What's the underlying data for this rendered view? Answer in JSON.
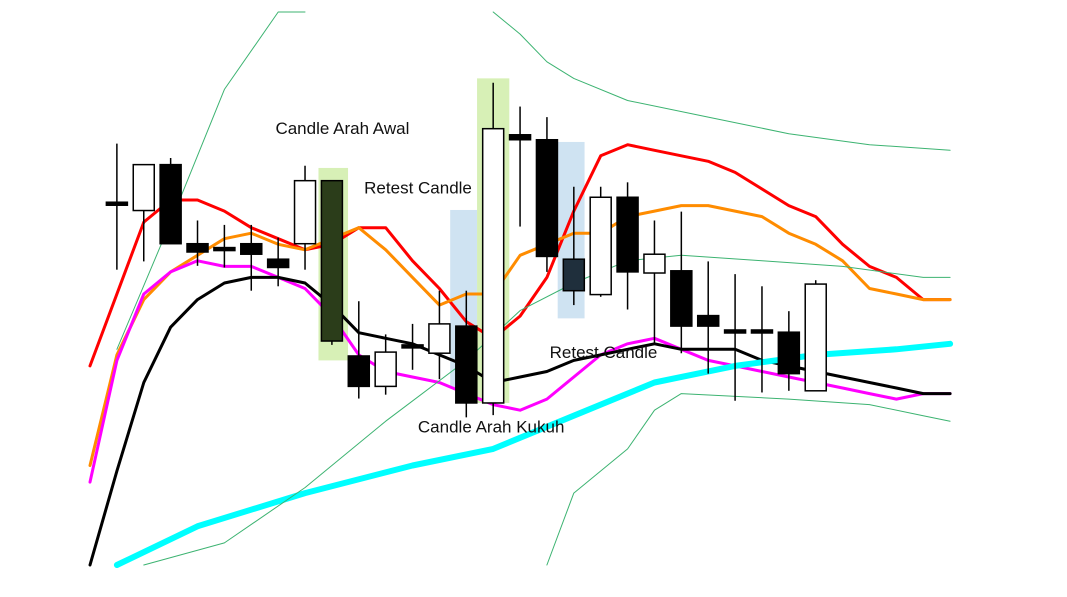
{
  "chart_data": {
    "type": "candlestick",
    "title": "",
    "xlabel": "",
    "ylabel": "",
    "grid": false,
    "legend": "none",
    "x": [
      1,
      2,
      3,
      4,
      5,
      6,
      7,
      8,
      9,
      10,
      11,
      12,
      13,
      14,
      15,
      16,
      17,
      18,
      19,
      20,
      21,
      22,
      23,
      24,
      25,
      26,
      27,
      28,
      29,
      30,
      31,
      32
    ],
    "xlim": [
      0,
      33
    ],
    "ylim": [
      0,
      100
    ],
    "candles": [
      {
        "x": 1,
        "open": 65.6,
        "high": 76.2,
        "low": 53.4,
        "close": 65.6
      },
      {
        "x": 2,
        "open": 64.1,
        "high": 72.4,
        "low": 54.9,
        "close": 72.4
      },
      {
        "x": 3,
        "open": 72.4,
        "high": 73.6,
        "low": 58.1,
        "close": 58.1
      },
      {
        "x": 4,
        "open": 58.1,
        "high": 62.3,
        "low": 54.1,
        "close": 56.6
      },
      {
        "x": 5,
        "open": 57.4,
        "high": 61.5,
        "low": 53.8,
        "close": 57.4
      },
      {
        "x": 6,
        "open": 58.1,
        "high": 61.5,
        "low": 49.6,
        "close": 56.2
      },
      {
        "x": 7,
        "open": 55.3,
        "high": 59.2,
        "low": 50.4,
        "close": 53.8
      },
      {
        "x": 8,
        "open": 58.1,
        "high": 72.2,
        "low": 53.4,
        "close": 69.5
      },
      {
        "x": 9,
        "open": 69.5,
        "high": 69.5,
        "low": 39.8,
        "close": 40.5
      },
      {
        "x": 10,
        "open": 37.8,
        "high": 47.7,
        "low": 30.1,
        "close": 32.3
      },
      {
        "x": 11,
        "open": 32.3,
        "high": 41.7,
        "low": 30.8,
        "close": 38.5
      },
      {
        "x": 12,
        "open": 39.8,
        "high": 43.6,
        "low": 35.3,
        "close": 39.8
      },
      {
        "x": 13,
        "open": 38.3,
        "high": 49.6,
        "low": 33.6,
        "close": 43.6
      },
      {
        "x": 14,
        "open": 43.2,
        "high": 49.6,
        "low": 26.7,
        "close": 29.3
      },
      {
        "x": 15,
        "open": 29.3,
        "high": 87.2,
        "low": 27.1,
        "close": 78.9
      },
      {
        "x": 16,
        "open": 77.8,
        "high": 82.9,
        "low": 61.2,
        "close": 76.9
      },
      {
        "x": 17,
        "open": 76.9,
        "high": 81.0,
        "low": 53.0,
        "close": 55.8
      },
      {
        "x": 18,
        "open": 55.3,
        "high": 68.4,
        "low": 47.0,
        "close": 49.6
      },
      {
        "x": 19,
        "open": 48.9,
        "high": 68.4,
        "low": 48.5,
        "close": 66.5
      },
      {
        "x": 20,
        "open": 66.5,
        "high": 69.2,
        "low": 46.2,
        "close": 53.0
      },
      {
        "x": 21,
        "open": 52.8,
        "high": 62.3,
        "low": 40.0,
        "close": 56.2
      },
      {
        "x": 22,
        "open": 53.2,
        "high": 63.9,
        "low": 38.3,
        "close": 43.2
      },
      {
        "x": 23,
        "open": 45.1,
        "high": 54.9,
        "low": 34.6,
        "close": 43.2
      },
      {
        "x": 24,
        "open": 42.5,
        "high": 52.6,
        "low": 29.7,
        "close": 42.5
      },
      {
        "x": 25,
        "open": 42.5,
        "high": 50.4,
        "low": 31.2,
        "close": 42.5
      },
      {
        "x": 26,
        "open": 42.1,
        "high": 45.9,
        "low": 31.5,
        "close": 34.6
      },
      {
        "x": 27,
        "open": 31.5,
        "high": 51.5,
        "low": 31.5,
        "close": 50.8
      }
    ],
    "series": [
      {
        "color": "#ff0000",
        "x": [
          0,
          2,
          3,
          4,
          5,
          6,
          7,
          8,
          9,
          10,
          11,
          12,
          13,
          14,
          15,
          16,
          17,
          18,
          19,
          20,
          21,
          22,
          23,
          24,
          25,
          26,
          27,
          28,
          29,
          30,
          31,
          32
        ],
        "y": [
          36,
          62,
          66,
          66,
          64,
          61,
          59,
          57,
          58,
          61,
          61,
          55,
          50,
          44,
          41,
          45,
          52,
          64,
          74,
          76,
          75,
          74,
          73,
          71,
          68,
          65,
          63,
          58,
          54,
          52,
          48,
          48
        ]
      },
      {
        "color": "#ff8c00",
        "x": [
          0,
          1,
          2,
          3,
          4,
          5,
          6,
          7,
          8,
          9,
          10,
          11,
          12,
          13,
          14,
          15,
          16,
          17,
          18,
          19,
          20,
          21,
          22,
          23,
          24,
          25,
          26,
          27,
          28,
          29,
          30,
          31,
          32
        ],
        "y": [
          18,
          38,
          48,
          53,
          56,
          59,
          60,
          58,
          57,
          59,
          61,
          57,
          52,
          47,
          49,
          49,
          56,
          58,
          60,
          60,
          63,
          64,
          65,
          65,
          64,
          63,
          60,
          58,
          55,
          50,
          49,
          48,
          48
        ]
      },
      {
        "color": "#ff00ff",
        "x": [
          0,
          1,
          2,
          3,
          4,
          5,
          6,
          7,
          8,
          9,
          10,
          11,
          12,
          13,
          14,
          15,
          16,
          17,
          18,
          19,
          20,
          21,
          22,
          23,
          24,
          25,
          26,
          27,
          28,
          29,
          30,
          31,
          32
        ],
        "y": [
          15,
          37,
          49,
          53,
          55,
          54,
          54,
          52,
          50,
          45,
          38,
          35,
          34,
          33,
          31,
          29,
          28,
          30,
          34,
          38,
          40,
          41,
          39,
          37,
          36,
          35,
          34,
          33,
          32,
          31,
          30,
          31,
          31
        ]
      },
      {
        "color": "#000000",
        "x": [
          0,
          1,
          2,
          3,
          4,
          5,
          6,
          7,
          8,
          9,
          10,
          11,
          12,
          13,
          14,
          15,
          16,
          17,
          18,
          19,
          20,
          21,
          22,
          23,
          24,
          25,
          26,
          27,
          28,
          29,
          30,
          31,
          32
        ],
        "y": [
          0,
          17,
          33,
          43,
          48,
          51,
          52,
          52,
          51,
          47,
          42,
          41,
          40,
          38,
          36,
          33,
          34,
          35,
          37,
          38,
          39,
          40,
          39,
          39,
          39,
          37,
          36,
          35,
          34,
          33,
          32,
          31,
          31
        ]
      },
      {
        "color": "#00ffff",
        "x": [
          1,
          4,
          8,
          12,
          15,
          18,
          21,
          24,
          27,
          30,
          32
        ],
        "y": [
          0,
          7,
          13,
          18,
          21,
          27,
          33,
          36,
          38,
          39,
          40
        ]
      },
      {
        "color": "#3cb371",
        "x": [
          1,
          3,
          5,
          7,
          8
        ],
        "y": [
          39,
          62,
          86,
          100,
          100
        ]
      },
      {
        "color": "#3cb371",
        "x": [
          15,
          16,
          17,
          18,
          20,
          23,
          26,
          29,
          32
        ],
        "y": [
          100,
          96,
          91,
          88,
          84,
          81,
          78,
          76,
          75
        ]
      },
      {
        "color": "#3cb371",
        "x": [
          2,
          5,
          8,
          11,
          14,
          16,
          18,
          20,
          22,
          25,
          28,
          31,
          32
        ],
        "y": [
          0,
          4,
          14,
          26,
          37,
          46,
          51,
          55,
          56,
          55,
          54,
          52,
          52
        ]
      },
      {
        "color": "#3cb371",
        "x": [
          17,
          18,
          20,
          21,
          22,
          26,
          29,
          31,
          32
        ],
        "y": [
          0,
          13,
          21,
          28,
          31,
          30,
          29,
          27,
          26
        ]
      }
    ],
    "highlights": [
      {
        "x0": 8.5,
        "x1": 9.6,
        "y0": 37.0,
        "y1": 71.8,
        "color": "#d7f0b6"
      },
      {
        "x0": 13.4,
        "x1": 14.4,
        "y0": 31.9,
        "y1": 64.2,
        "color": "#cfe3f2"
      },
      {
        "x0": 14.4,
        "x1": 15.6,
        "y0": 29.3,
        "y1": 88.0,
        "color": "#d7f0b6"
      },
      {
        "x0": 17.4,
        "x1": 18.4,
        "y0": 44.6,
        "y1": 76.5,
        "color": "#cfe3f2"
      }
    ],
    "annotations": [
      {
        "text": "Candle  Arah Awal",
        "x": 6.9,
        "y": 77.9
      },
      {
        "text": "Retest Candle",
        "x": 10.2,
        "y": 67.2
      },
      {
        "text": "Retest Candle",
        "x": 17.1,
        "y": 37.4
      },
      {
        "text": "Candle  Arah Kukuh",
        "x": 12.2,
        "y": 24.0
      }
    ]
  }
}
